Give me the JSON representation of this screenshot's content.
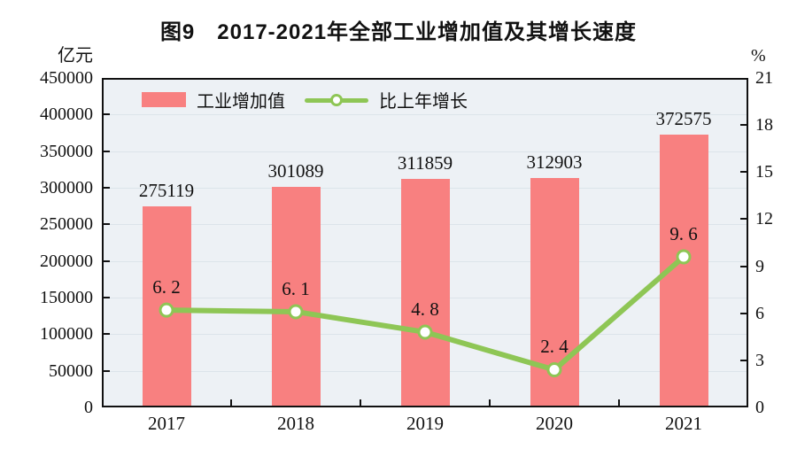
{
  "title": "图9　2017-2021年全部工业增加值及其增长速度",
  "chart_data": {
    "type": "bar+line",
    "categories": [
      "2017",
      "2018",
      "2019",
      "2020",
      "2021"
    ],
    "series": [
      {
        "name": "工业增加值",
        "type": "bar",
        "axis": "left",
        "color": "#F88080",
        "values": [
          275119,
          301089,
          311859,
          312903,
          372575
        ],
        "value_labels": [
          "275119",
          "301089",
          "311859",
          "312903",
          "372575"
        ]
      },
      {
        "name": "比上年增长",
        "type": "line",
        "axis": "right",
        "color": "#8EC655",
        "marker": "white-circle",
        "values": [
          6.2,
          6.1,
          4.8,
          2.4,
          9.6
        ],
        "value_labels": [
          "6. 2",
          "6. 1",
          "4. 8",
          "2. 4",
          "9. 6"
        ]
      }
    ],
    "left_axis": {
      "unit": "亿元",
      "min": 0,
      "max": 450000,
      "step": 50000,
      "tick_labels": [
        "0",
        "50000",
        "100000",
        "150000",
        "200000",
        "250000",
        "300000",
        "350000",
        "400000",
        "450000"
      ]
    },
    "right_axis": {
      "unit": "%",
      "min": 0,
      "max": 21,
      "step": 3,
      "tick_labels": [
        "0",
        "3",
        "6",
        "9",
        "12",
        "15",
        "18",
        "21"
      ]
    },
    "legend": {
      "position": "inside-top-left",
      "items": [
        {
          "label": "工业增加值",
          "swatch": "bar"
        },
        {
          "label": "比上年增长",
          "swatch": "line"
        }
      ]
    },
    "grid": true,
    "plot_background": "#EDF1F5",
    "grid_color": "#DCE4EA",
    "frame_color": "#111111"
  }
}
